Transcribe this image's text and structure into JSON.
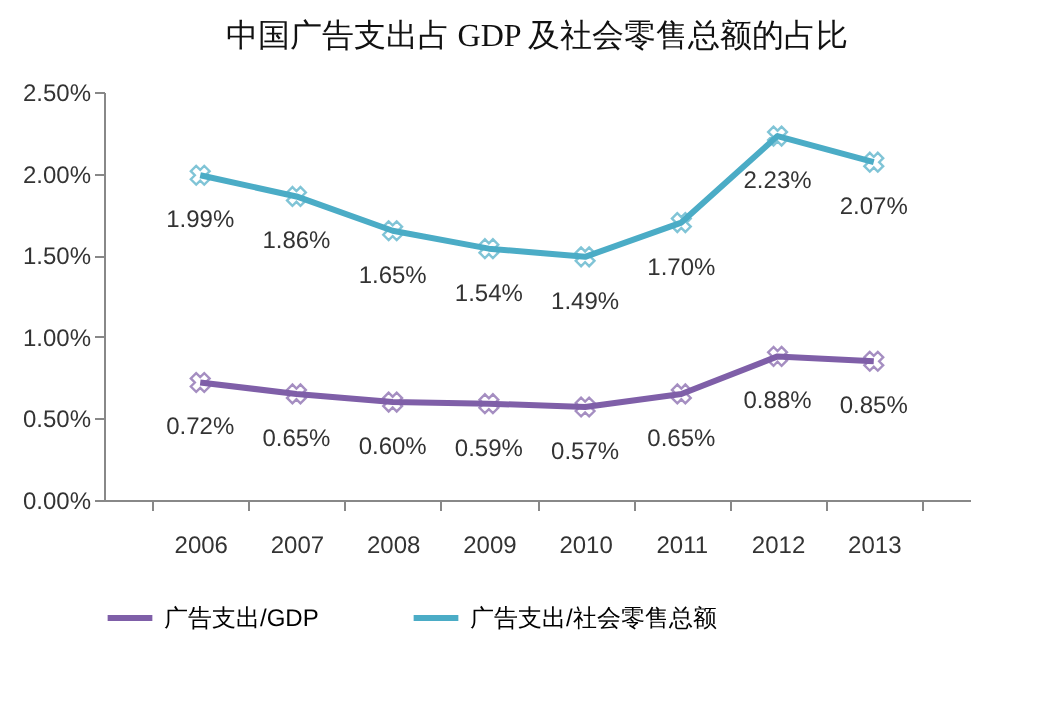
{
  "chart_data": {
    "type": "line",
    "title": "中国广告支出占 GDP 及社会零售总额的占比",
    "categories": [
      "2006",
      "2007",
      "2008",
      "2009",
      "2010",
      "2011",
      "2012",
      "2013"
    ],
    "series": [
      {
        "name": "广告支出/GDP",
        "color": "#7f5fa8",
        "values": [
          0.72,
          0.65,
          0.6,
          0.59,
          0.57,
          0.65,
          0.88,
          0.85
        ],
        "value_labels": [
          "0.72%",
          "0.65%",
          "0.60%",
          "0.59%",
          "0.57%",
          "0.65%",
          "0.88%",
          "0.85%"
        ]
      },
      {
        "name": "广告支出/社会零售总额",
        "color": "#4bacc6",
        "values": [
          1.99,
          1.86,
          1.65,
          1.54,
          1.49,
          1.7,
          2.23,
          2.07
        ],
        "value_labels": [
          "1.99%",
          "1.86%",
          "1.65%",
          "1.54%",
          "1.49%",
          "1.70%",
          "2.23%",
          "2.07%"
        ]
      }
    ],
    "ylim": [
      0,
      2.5
    ],
    "yticks": [
      {
        "value": 0,
        "label": "0.00%"
      },
      {
        "value": 0.5,
        "label": "0.50%"
      },
      {
        "value": 1,
        "label": "1.00%"
      },
      {
        "value": 1.5,
        "label": "1.50%"
      },
      {
        "value": 2,
        "label": "2.00%"
      },
      {
        "value": 2.5,
        "label": "2.50%"
      }
    ],
    "grid": false,
    "legend": "bottom",
    "marker": "cross",
    "line_style": "solid"
  }
}
